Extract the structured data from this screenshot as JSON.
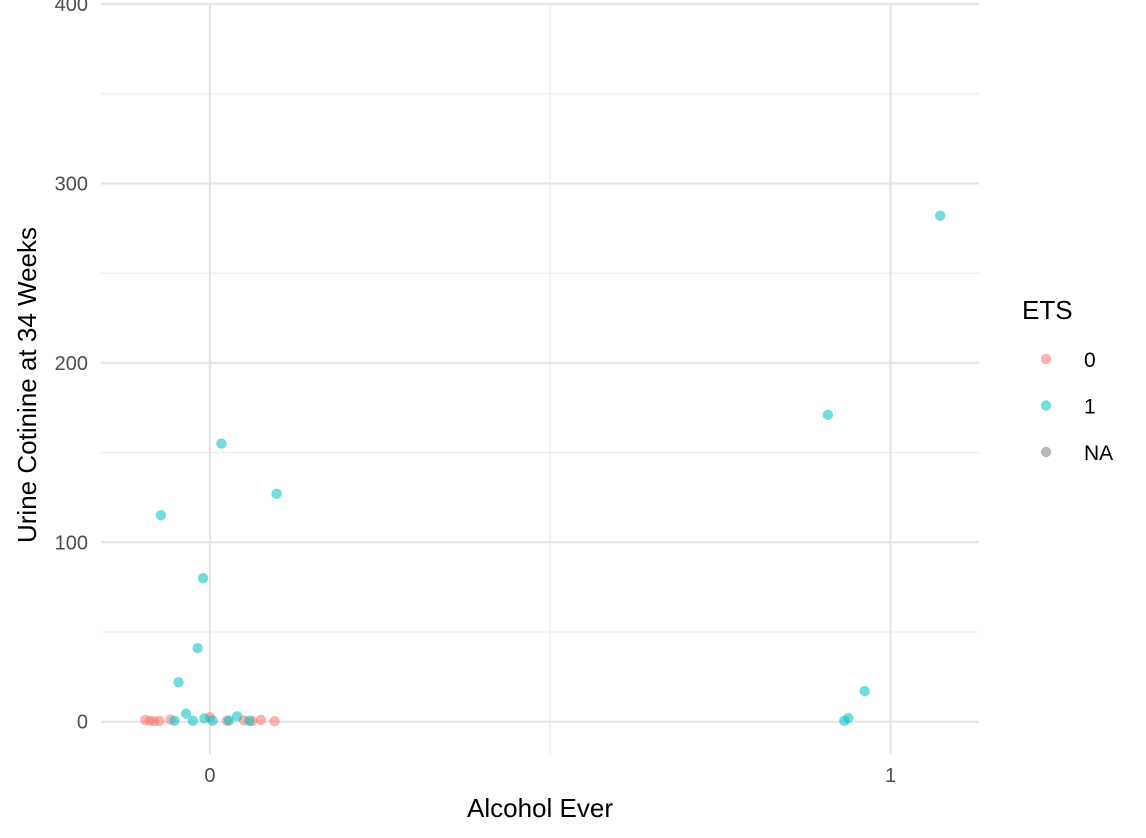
{
  "chart_data": {
    "type": "scatter",
    "xlabel": "Alcohol Ever",
    "ylabel": "Urine Cotinine at 34 Weeks",
    "xlim": [
      -0.16,
      1.13
    ],
    "ylim": [
      -18,
      400
    ],
    "x_ticks": [
      0,
      1
    ],
    "x_tick_labels": [
      "0",
      "1"
    ],
    "y_ticks": [
      0,
      100,
      200,
      300,
      400
    ],
    "y_tick_labels": [
      "0",
      "100",
      "200",
      "300",
      "400"
    ],
    "grid": true,
    "legend": {
      "title": "ETS",
      "position": "right",
      "entries": [
        {
          "label": "0",
          "color": "#F8766D"
        },
        {
          "label": "1",
          "color": "#00BFC4"
        },
        {
          "label": "NA",
          "color": "#7F7F7F"
        }
      ]
    },
    "series": [
      {
        "name": "0",
        "color": "#F8766D",
        "points": [
          {
            "x": -0.095,
            "y": 1.0
          },
          {
            "x": -0.088,
            "y": 0.5
          },
          {
            "x": -0.082,
            "y": 0.3
          },
          {
            "x": -0.074,
            "y": 0.4
          },
          {
            "x": -0.058,
            "y": 1.2
          },
          {
            "x": 0.0,
            "y": 2.5
          },
          {
            "x": 0.025,
            "y": 0.5
          },
          {
            "x": 0.05,
            "y": 0.8
          },
          {
            "x": 0.062,
            "y": 0.4
          },
          {
            "x": 0.075,
            "y": 1.0
          },
          {
            "x": 0.095,
            "y": 0.3
          }
        ]
      },
      {
        "name": "1",
        "color": "#00BFC4",
        "points": [
          {
            "x": -0.072,
            "y": 115
          },
          {
            "x": -0.052,
            "y": 0.5
          },
          {
            "x": -0.046,
            "y": 22
          },
          {
            "x": -0.035,
            "y": 4.5
          },
          {
            "x": -0.025,
            "y": 0.5
          },
          {
            "x": -0.018,
            "y": 41
          },
          {
            "x": -0.01,
            "y": 80
          },
          {
            "x": -0.008,
            "y": 1.8
          },
          {
            "x": 0.004,
            "y": 0.6
          },
          {
            "x": 0.017,
            "y": 155
          },
          {
            "x": 0.028,
            "y": 0.7
          },
          {
            "x": 0.04,
            "y": 3.0
          },
          {
            "x": 0.058,
            "y": 0.5
          },
          {
            "x": 0.098,
            "y": 127
          },
          {
            "x": 0.908,
            "y": 171
          },
          {
            "x": 0.932,
            "y": 0.5
          },
          {
            "x": 0.938,
            "y": 2.0
          },
          {
            "x": 0.962,
            "y": 17
          },
          {
            "x": 1.073,
            "y": 282
          }
        ]
      }
    ]
  }
}
